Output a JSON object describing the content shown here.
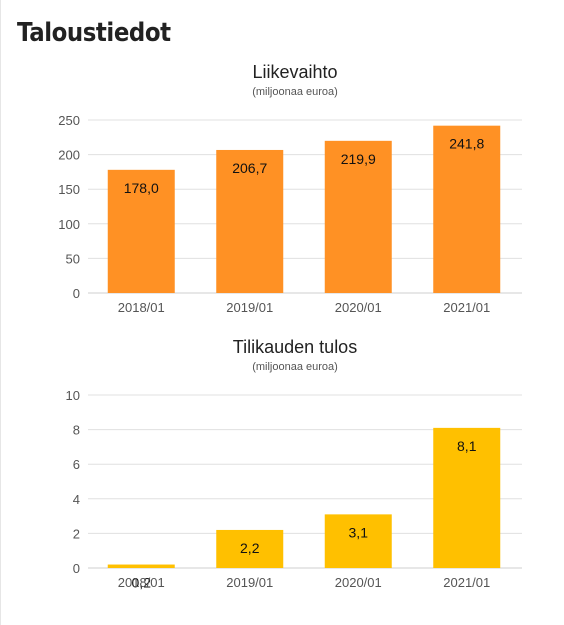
{
  "page_title": "Taloustiedot",
  "chart_data": [
    {
      "type": "bar",
      "title": "Liikevaihto",
      "subtitle": "(miljoonaa euroa)",
      "categories": [
        "2018/01",
        "2019/01",
        "2020/01",
        "2021/01"
      ],
      "values": [
        178.0,
        206.7,
        219.9,
        241.8
      ],
      "value_labels": [
        "178,0",
        "206,7",
        "219,9",
        "241,8"
      ],
      "yticks": [
        0,
        50,
        100,
        150,
        200,
        250
      ],
      "ylim": [
        0,
        250
      ],
      "grid": true,
      "color": "#ff9124"
    },
    {
      "type": "bar",
      "title": "Tilikauden tulos",
      "subtitle": "(miljoonaa euroa)",
      "categories": [
        "2018/01",
        "2019/01",
        "2020/01",
        "2021/01"
      ],
      "values": [
        0.2,
        2.2,
        3.1,
        8.1
      ],
      "value_labels": [
        "0,2",
        "2,2",
        "3,1",
        "8,1"
      ],
      "yticks": [
        0,
        2,
        4,
        6,
        8,
        10
      ],
      "ylim": [
        0,
        10
      ],
      "grid": true,
      "color": "#ffc000"
    }
  ]
}
